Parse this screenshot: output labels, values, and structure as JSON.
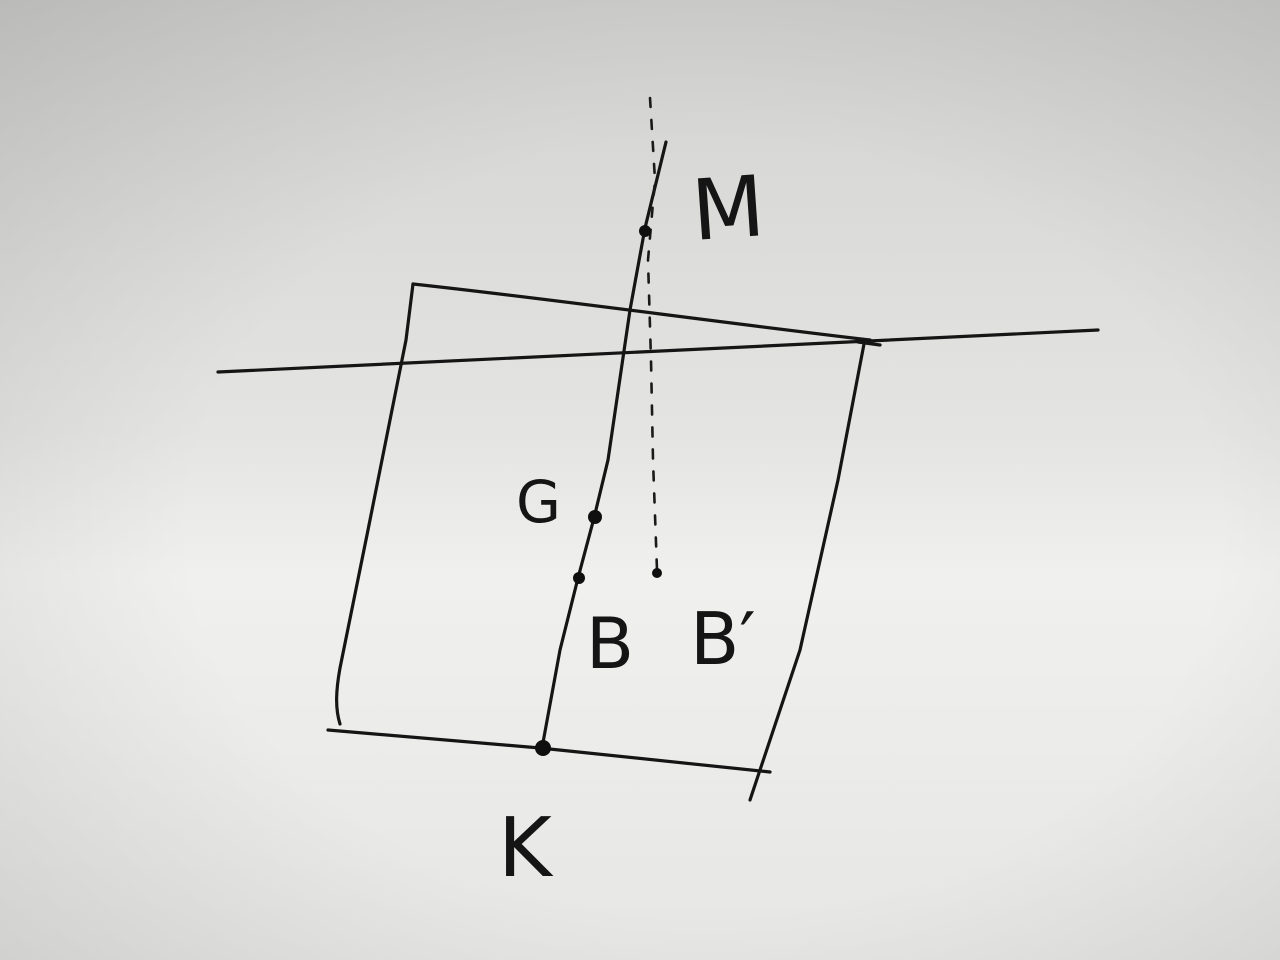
{
  "diagram": {
    "labels": {
      "M": "M",
      "G": "G",
      "B": "B",
      "B_prime": "B′",
      "K": "K"
    },
    "colors": {
      "paper": "#d9d9d7",
      "ink": "#151515"
    }
  }
}
